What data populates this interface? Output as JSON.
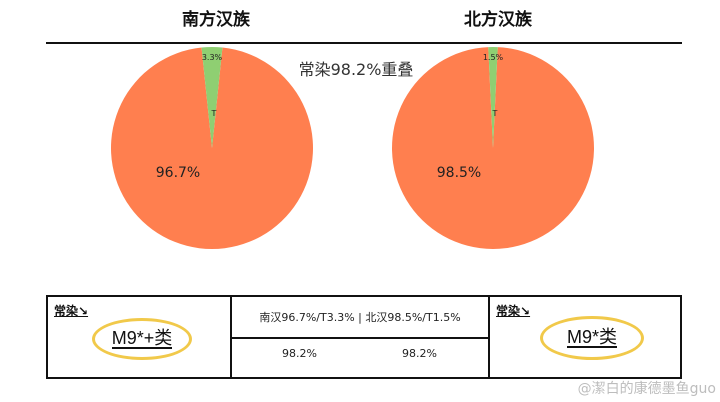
{
  "chart_data": [
    {
      "type": "pie",
      "title": "南方汉族",
      "slices": [
        {
          "label": "",
          "value": 96.7,
          "display": "96.7%",
          "color": "#ff7f4f"
        },
        {
          "label": "T",
          "value": 3.3,
          "display": "3.3%",
          "color": "#8fcf72"
        }
      ]
    },
    {
      "type": "pie",
      "title": "北方汉族",
      "slices": [
        {
          "label": "",
          "value": 98.5,
          "display": "98.5%",
          "color": "#ff7f4f"
        },
        {
          "label": "T",
          "value": 1.5,
          "display": "1.5%",
          "color": "#8fcf72"
        }
      ]
    }
  ],
  "overlap_note": "常染98.2%重叠",
  "table": {
    "left_corner": "常染↘",
    "left_value": "M9*+类",
    "center_top": "南汉96.7%/T3.3% | 北汉98.5%/T1.5%",
    "center_values": [
      "98.2%",
      "98.2%"
    ],
    "right_corner": "常染↘",
    "right_value": "M9*类"
  },
  "watermark": "@潔白的康德墨鱼guo",
  "colors": {
    "main": "#ff7f4f",
    "minor": "#8fcf72",
    "highlight": "#f1c94a"
  }
}
